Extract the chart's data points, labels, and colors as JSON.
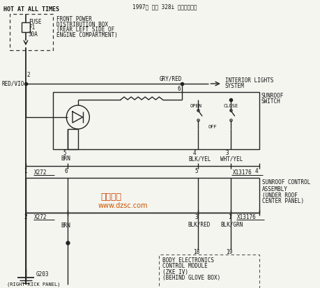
{
  "title": "1997年 宝马 328i 天窗板电路图",
  "bg_color": "#f5f5f0",
  "line_color": "#222222",
  "dash_color": "#555555",
  "text_color": "#111111",
  "header": "HOT AT ALL TIMES",
  "fuse_label": [
    "FUSE",
    "F1",
    "30A"
  ],
  "box1_label": [
    "FRONT POWER",
    "DISTRIBUTION BOX",
    "(REAR LEFT SIDE OF",
    "ENGINE COMPARTMENT)"
  ],
  "wire1": "RED/VIO",
  "wire2": "GRY/RED",
  "pin2": "2",
  "pin6": "6",
  "interior_label": [
    "INTERIOR LIGHTS",
    "SYSTEM"
  ],
  "sunroof_switch_label": [
    "SUNROOF",
    "SWITCH"
  ],
  "open_label": "OPEN",
  "close_label": "CLOSE",
  "off_label": "OFF",
  "pin5": "5",
  "pin4": "4",
  "pin3": "3",
  "brn_label": "BRN",
  "blkyel_label": "BLK/YEL",
  "whtyel_label": "WHT/YEL",
  "x272_label": "X272",
  "x13176_label": "X13176",
  "pin1": "1",
  "pin6b": "6",
  "pin5b": "5",
  "pin4b": "4",
  "sunroof_ctrl_label": [
    "SUNROOF CONTROL",
    "ASSEMBLY",
    "(UNDER ROOF",
    "CENTER PANEL)"
  ],
  "x272_2": "X272",
  "x13176_2": "X13176",
  "pin2b": "2",
  "pin3b": "3",
  "pin1b": "1",
  "blkred_label": "BLK/RED",
  "blkgrn_label": "BLK/GRN",
  "pin18": "18",
  "pin19": "19",
  "brn2_label": "BRN",
  "body_ctrl_label": [
    "BODY ELECTRONICS",
    "CONTROL MODULE",
    "(ZKE IV)",
    "(BEHIND GLOVE BOX)"
  ],
  "g203_label": "G203",
  "right_kick": "(RIGHT KICK PANEL)"
}
